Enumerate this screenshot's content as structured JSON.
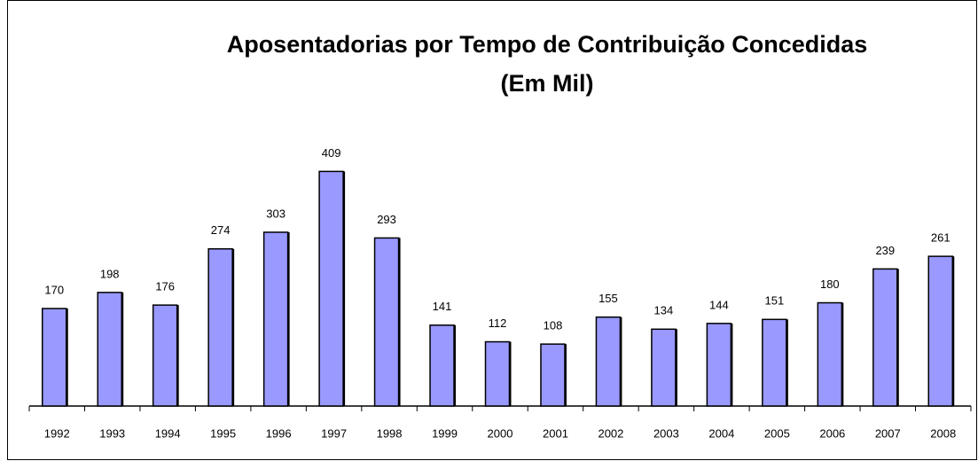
{
  "chart_data": {
    "type": "bar",
    "title": "Aposentadorias por Tempo de Contribuição  Concedidas",
    "subtitle": "(Em Mil)",
    "categories": [
      "1992",
      "1993",
      "1994",
      "1995",
      "1996",
      "1997",
      "1998",
      "1999",
      "2000",
      "2001",
      "2002",
      "2003",
      "2004",
      "2005",
      "2006",
      "2007",
      "2008"
    ],
    "values": [
      170,
      198,
      176,
      274,
      303,
      409,
      293,
      141,
      112,
      108,
      155,
      134,
      144,
      151,
      180,
      239,
      261
    ],
    "color": "#9999ff"
  }
}
